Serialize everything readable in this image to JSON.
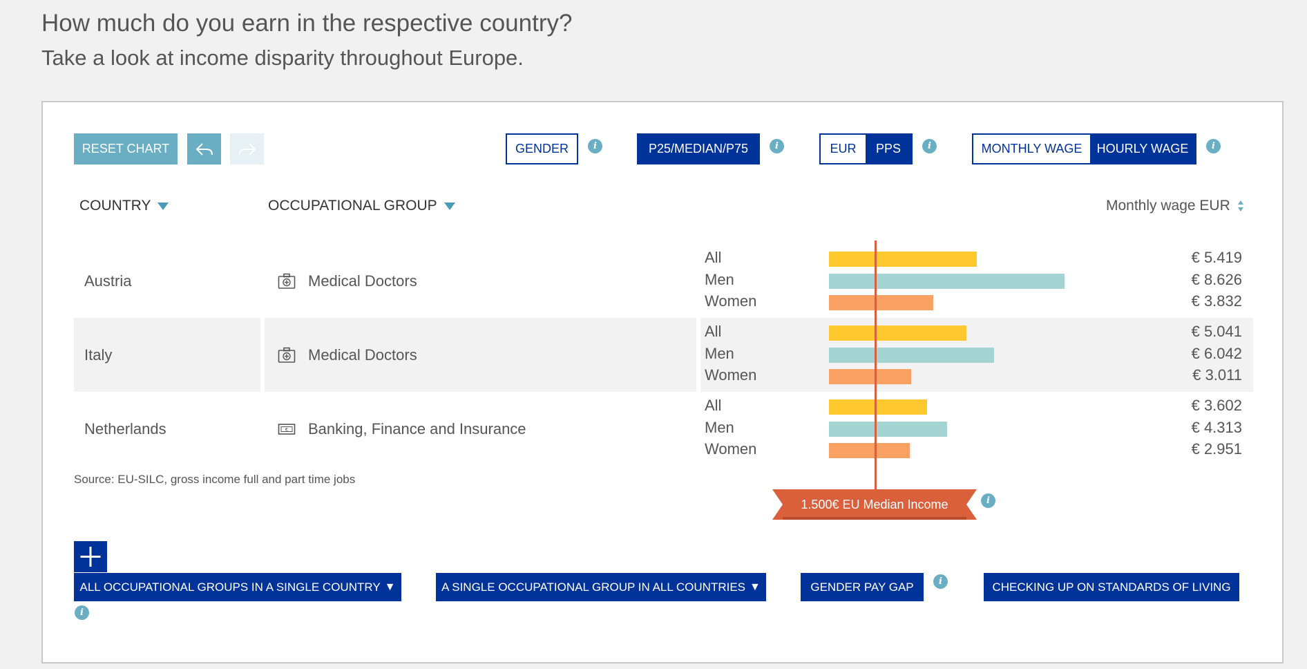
{
  "page": {
    "headline": "How much do you earn in the respective country?",
    "subline": "Take a look at income disparity throughout Europe."
  },
  "toolbar": {
    "reset": "RESET CHART",
    "gender": "GENDER",
    "percentile": "P25/MEDIAN/P75",
    "currency": [
      "EUR",
      "PPS"
    ],
    "currency_selected": "PPS",
    "wage": [
      "MONTHLY WAGE",
      "HOURLY WAGE"
    ],
    "wage_selected": "HOURLY WAGE"
  },
  "columns": {
    "country": "COUNTRY",
    "occupation": "OCCUPATIONAL GROUP",
    "sort": "Monthly wage EUR"
  },
  "colors": {
    "all": "#fdc92f",
    "men": "#a5d5d2",
    "women": "#f8a162",
    "median": "#d9603b",
    "navy": "#003399",
    "accent": "#6aaec4"
  },
  "chart_data": {
    "type": "bar",
    "series_labels": [
      "All",
      "Men",
      "Women"
    ],
    "median_label": "1.500€ EU Median Income",
    "median_value": 1500,
    "rows": [
      {
        "country": "Austria",
        "occupation": "Medical Doctors",
        "icon": "medical-kit-icon",
        "values": [
          5419,
          8626,
          3832
        ],
        "display": [
          "€ 5.419",
          "€ 8.626",
          "€ 3.832"
        ]
      },
      {
        "country": "Italy",
        "occupation": "Medical Doctors",
        "icon": "medical-kit-icon",
        "values": [
          5041,
          6042,
          3011
        ],
        "display": [
          "€ 5.041",
          "€ 6.042",
          "€ 3.011"
        ]
      },
      {
        "country": "Netherlands",
        "occupation": "Banking, Finance and Insurance",
        "icon": "banknote-icon",
        "values": [
          3602,
          4313,
          2951
        ],
        "display": [
          "€ 3.602",
          "€ 4.313",
          "€ 2.951"
        ]
      }
    ]
  },
  "source": "Source: EU-SILC, gross income full and part time jobs",
  "actions": {
    "single_country": "ALL OCCUPATIONAL GROUPS IN A SINGLE COUNTRY",
    "single_group": "A SINGLE OCCUPATIONAL GROUP IN ALL COUNTRIES",
    "pay_gap": "GENDER PAY GAP",
    "standards": "CHECKING UP ON STANDARDS OF LIVING"
  }
}
